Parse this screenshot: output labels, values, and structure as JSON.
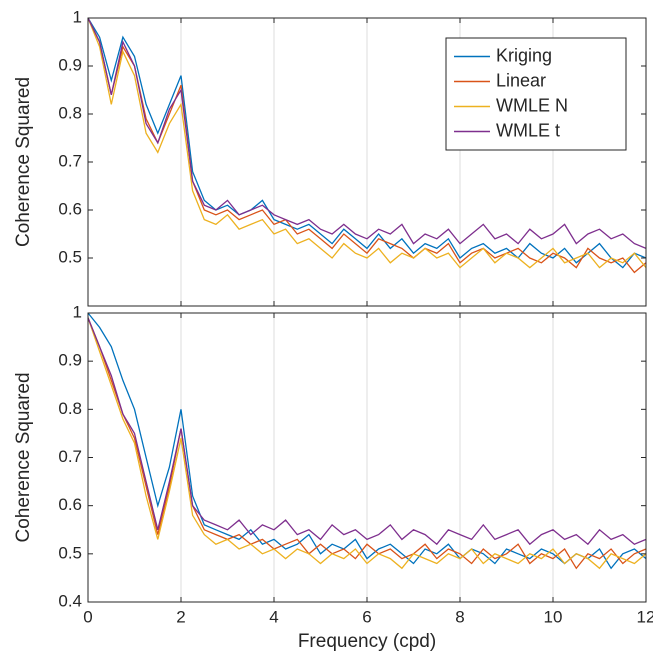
{
  "chart_data": [
    {
      "type": "line",
      "ylabel": "Coherence Squared",
      "x": [
        0,
        0.25,
        0.5,
        0.75,
        1,
        1.25,
        1.5,
        1.75,
        2,
        2.25,
        2.5,
        2.75,
        3,
        3.25,
        3.5,
        3.75,
        4,
        4.25,
        4.5,
        4.75,
        5,
        5.25,
        5.5,
        5.75,
        6,
        6.25,
        6.5,
        6.75,
        7,
        7.25,
        7.5,
        7.75,
        8,
        8.25,
        8.5,
        8.75,
        9,
        9.25,
        9.5,
        9.75,
        10,
        10.25,
        10.5,
        10.75,
        11,
        11.25,
        11.5,
        11.75,
        12
      ],
      "xlim": [
        0,
        12
      ],
      "xticks": [
        0,
        2,
        4,
        6,
        8,
        10,
        12
      ],
      "ylim": [
        0.4,
        1
      ],
      "yticks": [
        0.5,
        0.6,
        0.7,
        0.8,
        0.9,
        1
      ],
      "grid": true,
      "legend": "northeast",
      "series": [
        {
          "name": "Kriging",
          "color": "#0072bd",
          "values": [
            1,
            0.96,
            0.87,
            0.96,
            0.92,
            0.82,
            0.76,
            0.82,
            0.88,
            0.68,
            0.62,
            0.6,
            0.61,
            0.59,
            0.6,
            0.62,
            0.58,
            0.57,
            0.56,
            0.57,
            0.55,
            0.53,
            0.56,
            0.54,
            0.52,
            0.55,
            0.52,
            0.54,
            0.51,
            0.53,
            0.52,
            0.54,
            0.5,
            0.52,
            0.53,
            0.51,
            0.52,
            0.5,
            0.53,
            0.51,
            0.5,
            0.52,
            0.49,
            0.51,
            0.53,
            0.5,
            0.48,
            0.51,
            0.5
          ]
        },
        {
          "name": "Linear",
          "color": "#d95319",
          "values": [
            1,
            0.95,
            0.84,
            0.94,
            0.9,
            0.79,
            0.74,
            0.8,
            0.86,
            0.66,
            0.6,
            0.59,
            0.6,
            0.58,
            0.59,
            0.6,
            0.57,
            0.58,
            0.55,
            0.56,
            0.54,
            0.52,
            0.55,
            0.53,
            0.51,
            0.54,
            0.53,
            0.52,
            0.5,
            0.52,
            0.51,
            0.53,
            0.49,
            0.51,
            0.52,
            0.5,
            0.51,
            0.52,
            0.5,
            0.49,
            0.51,
            0.5,
            0.48,
            0.52,
            0.5,
            0.49,
            0.5,
            0.47,
            0.49
          ]
        },
        {
          "name": "WMLE N",
          "color": "#edb120",
          "values": [
            1,
            0.94,
            0.82,
            0.93,
            0.88,
            0.76,
            0.72,
            0.78,
            0.82,
            0.64,
            0.58,
            0.57,
            0.59,
            0.56,
            0.57,
            0.58,
            0.55,
            0.56,
            0.53,
            0.54,
            0.52,
            0.5,
            0.53,
            0.51,
            0.5,
            0.52,
            0.49,
            0.51,
            0.5,
            0.52,
            0.5,
            0.51,
            0.48,
            0.5,
            0.52,
            0.49,
            0.51,
            0.5,
            0.48,
            0.5,
            0.52,
            0.49,
            0.5,
            0.51,
            0.48,
            0.5,
            0.49,
            0.51,
            0.48
          ]
        },
        {
          "name": "WMLE t",
          "color": "#7e2f8e",
          "values": [
            1,
            0.95,
            0.84,
            0.95,
            0.9,
            0.78,
            0.74,
            0.81,
            0.85,
            0.66,
            0.61,
            0.6,
            0.62,
            0.59,
            0.6,
            0.61,
            0.59,
            0.58,
            0.57,
            0.58,
            0.56,
            0.55,
            0.57,
            0.55,
            0.54,
            0.56,
            0.55,
            0.57,
            0.53,
            0.55,
            0.54,
            0.56,
            0.53,
            0.55,
            0.57,
            0.54,
            0.55,
            0.53,
            0.56,
            0.54,
            0.55,
            0.57,
            0.53,
            0.55,
            0.56,
            0.54,
            0.55,
            0.53,
            0.52
          ]
        }
      ]
    },
    {
      "type": "line",
      "ylabel": "Coherence Squared",
      "xlabel": "Frequency (cpd)",
      "x": [
        0,
        0.25,
        0.5,
        0.75,
        1,
        1.25,
        1.5,
        1.75,
        2,
        2.25,
        2.5,
        2.75,
        3,
        3.25,
        3.5,
        3.75,
        4,
        4.25,
        4.5,
        4.75,
        5,
        5.25,
        5.5,
        5.75,
        6,
        6.25,
        6.5,
        6.75,
        7,
        7.25,
        7.5,
        7.75,
        8,
        8.25,
        8.5,
        8.75,
        9,
        9.25,
        9.5,
        9.75,
        10,
        10.25,
        10.5,
        10.75,
        11,
        11.25,
        11.5,
        11.75,
        12
      ],
      "xlim": [
        0,
        12
      ],
      "xticks": [
        0,
        2,
        4,
        6,
        8,
        10,
        12
      ],
      "ylim": [
        0.4,
        1
      ],
      "yticks": [
        0.4,
        0.5,
        0.6,
        0.7,
        0.8,
        0.9,
        1
      ],
      "grid": true,
      "series": [
        {
          "name": "Kriging",
          "color": "#0072bd",
          "values": [
            1,
            0.97,
            0.93,
            0.86,
            0.8,
            0.7,
            0.6,
            0.68,
            0.8,
            0.62,
            0.56,
            0.55,
            0.54,
            0.53,
            0.55,
            0.52,
            0.53,
            0.51,
            0.52,
            0.54,
            0.5,
            0.52,
            0.51,
            0.53,
            0.49,
            0.51,
            0.52,
            0.5,
            0.48,
            0.51,
            0.5,
            0.52,
            0.49,
            0.51,
            0.5,
            0.48,
            0.51,
            0.5,
            0.49,
            0.51,
            0.5,
            0.48,
            0.5,
            0.49,
            0.51,
            0.47,
            0.5,
            0.51,
            0.49
          ]
        },
        {
          "name": "Linear",
          "color": "#d95319",
          "values": [
            0.99,
            0.93,
            0.86,
            0.79,
            0.74,
            0.64,
            0.54,
            0.64,
            0.76,
            0.6,
            0.55,
            0.54,
            0.53,
            0.54,
            0.52,
            0.53,
            0.51,
            0.52,
            0.53,
            0.5,
            0.52,
            0.5,
            0.51,
            0.49,
            0.52,
            0.5,
            0.51,
            0.49,
            0.5,
            0.52,
            0.49,
            0.51,
            0.5,
            0.48,
            0.51,
            0.49,
            0.5,
            0.52,
            0.48,
            0.5,
            0.49,
            0.51,
            0.47,
            0.5,
            0.49,
            0.51,
            0.48,
            0.5,
            0.51
          ]
        },
        {
          "name": "WMLE N",
          "color": "#edb120",
          "values": [
            0.99,
            0.92,
            0.85,
            0.78,
            0.73,
            0.62,
            0.53,
            0.63,
            0.74,
            0.58,
            0.54,
            0.52,
            0.53,
            0.51,
            0.52,
            0.5,
            0.51,
            0.49,
            0.51,
            0.5,
            0.48,
            0.5,
            0.49,
            0.51,
            0.48,
            0.5,
            0.49,
            0.47,
            0.5,
            0.49,
            0.48,
            0.5,
            0.49,
            0.51,
            0.48,
            0.5,
            0.49,
            0.48,
            0.5,
            0.49,
            0.51,
            0.48,
            0.5,
            0.49,
            0.47,
            0.5,
            0.49,
            0.48,
            0.5
          ]
        },
        {
          "name": "WMLE t",
          "color": "#7e2f8e",
          "values": [
            0.99,
            0.93,
            0.87,
            0.79,
            0.75,
            0.65,
            0.55,
            0.65,
            0.76,
            0.6,
            0.57,
            0.56,
            0.55,
            0.57,
            0.54,
            0.56,
            0.55,
            0.57,
            0.54,
            0.55,
            0.53,
            0.56,
            0.54,
            0.55,
            0.53,
            0.54,
            0.56,
            0.53,
            0.55,
            0.54,
            0.52,
            0.55,
            0.54,
            0.53,
            0.56,
            0.53,
            0.54,
            0.55,
            0.52,
            0.54,
            0.55,
            0.53,
            0.54,
            0.52,
            0.55,
            0.53,
            0.54,
            0.52,
            0.53
          ]
        }
      ]
    }
  ]
}
